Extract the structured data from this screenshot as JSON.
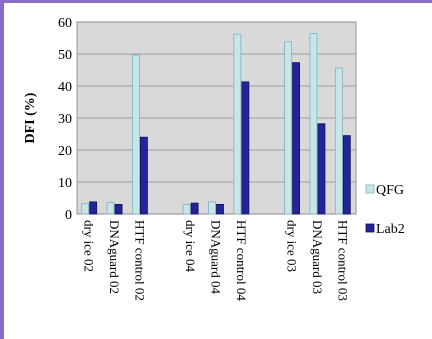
{
  "chart_data": {
    "type": "bar",
    "title": "",
    "xlabel": "",
    "ylabel": "DFI (%)",
    "ylim": [
      0,
      60
    ],
    "yticks": [
      0,
      10,
      20,
      30,
      40,
      50,
      60
    ],
    "grid": true,
    "legend_position": "right",
    "groups": [
      [
        "dry ice 02",
        "DNAguard 02",
        "HTF control 02"
      ],
      [
        "dry ice 04",
        "DNAguard 04",
        "HTF control 04"
      ],
      [
        "dry ice 03",
        "DNAguard 03",
        "HTF control 03"
      ]
    ],
    "categories": [
      "dry ice 02",
      "DNAguard 02",
      "HTF control 02",
      "dry ice 04",
      "DNAguard 04",
      "HTF control 04",
      "dry ice 03",
      "DNAguard 03",
      "HTF control 03"
    ],
    "series": [
      {
        "name": "QFG",
        "color": "#c6e6ea",
        "stroke": "#7fb3ba",
        "values": [
          3.2,
          3.6,
          49.7,
          3.0,
          3.8,
          56.2,
          53.8,
          56.4,
          45.6
        ]
      },
      {
        "name": "Lab2",
        "color": "#24249a",
        "stroke": "#10105a",
        "values": [
          3.8,
          3.0,
          24.0,
          3.4,
          3.0,
          41.3,
          47.3,
          28.2,
          24.5
        ]
      }
    ]
  }
}
